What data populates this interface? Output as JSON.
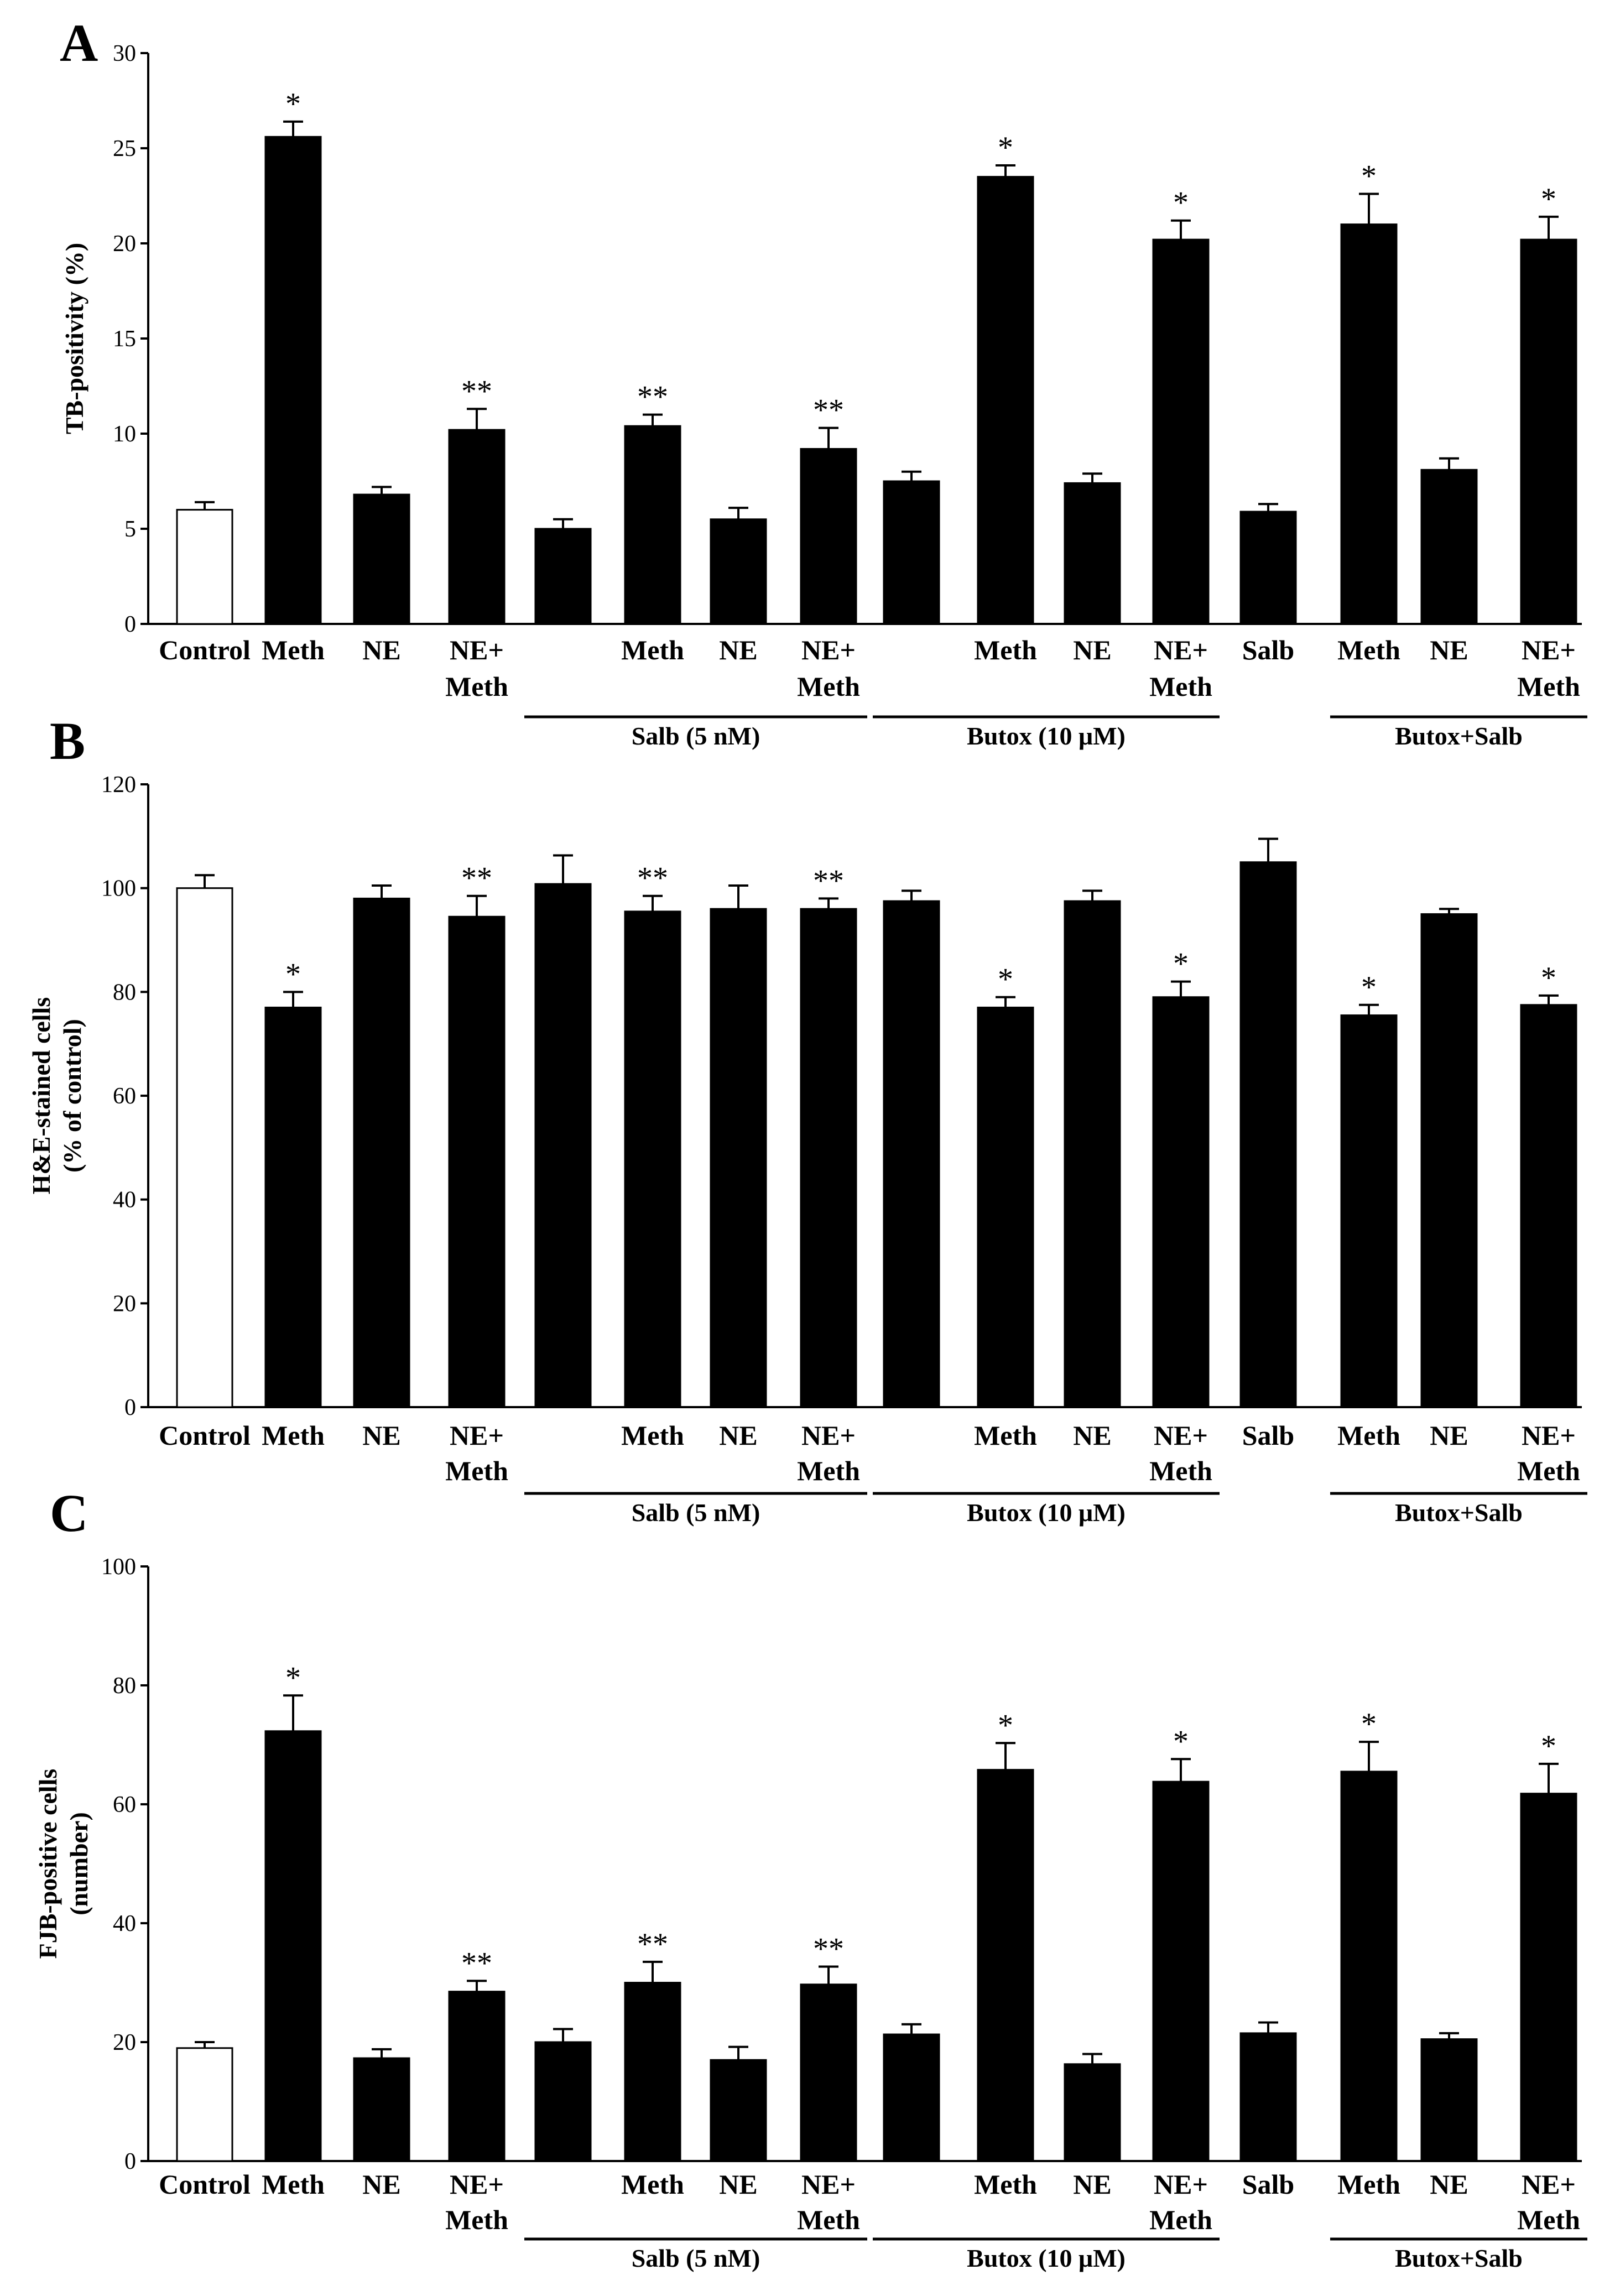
{
  "chart_data": [
    {
      "panel": "A",
      "type": "bar",
      "ylabel": "TB-positivity (%)",
      "ylim": [
        0,
        30
      ],
      "yticks": [
        0,
        5,
        10,
        15,
        20,
        25,
        30
      ],
      "bars": [
        {
          "label": "Control",
          "value": 6.0,
          "err": 0.4,
          "sig": "",
          "fill": "open"
        },
        {
          "label": "Meth",
          "value": 25.6,
          "err": 0.8,
          "sig": "*",
          "fill": "solid"
        },
        {
          "label": "NE",
          "value": 6.8,
          "err": 0.4,
          "sig": "",
          "fill": "solid"
        },
        {
          "label": "NE+\nMeth",
          "value": 10.2,
          "err": 1.1,
          "sig": "**",
          "fill": "solid"
        },
        {
          "label": "",
          "value": 5.0,
          "err": 0.5,
          "sig": "",
          "fill": "solid"
        },
        {
          "label": "Meth",
          "value": 10.4,
          "err": 0.6,
          "sig": "**",
          "fill": "solid"
        },
        {
          "label": "NE",
          "value": 5.5,
          "err": 0.6,
          "sig": "",
          "fill": "solid"
        },
        {
          "label": "NE+\nMeth",
          "value": 9.2,
          "err": 1.1,
          "sig": "**",
          "fill": "solid"
        },
        {
          "label": "",
          "value": 7.5,
          "err": 0.5,
          "sig": "",
          "fill": "solid"
        },
        {
          "label": "Meth",
          "value": 23.5,
          "err": 0.6,
          "sig": "*",
          "fill": "solid"
        },
        {
          "label": "NE",
          "value": 7.4,
          "err": 0.5,
          "sig": "",
          "fill": "solid"
        },
        {
          "label": "NE+\nMeth",
          "value": 20.2,
          "err": 1.0,
          "sig": "*",
          "fill": "solid"
        },
        {
          "label": "Salb",
          "value": 5.9,
          "err": 0.4,
          "sig": "",
          "fill": "solid"
        },
        {
          "label": "Meth",
          "value": 21.0,
          "err": 1.6,
          "sig": "*",
          "fill": "solid"
        },
        {
          "label": "NE",
          "value": 8.1,
          "err": 0.6,
          "sig": "",
          "fill": "solid"
        },
        {
          "label": "NE+\nMeth",
          "value": 20.2,
          "err": 1.2,
          "sig": "*",
          "fill": "solid"
        }
      ],
      "groups": [
        {
          "label": "Salb (5 nM)",
          "from": 4,
          "to": 7
        },
        {
          "label": "Butox (10 μM)",
          "from": 8,
          "to": 11
        },
        {
          "label": "Butox+Salb",
          "from": 13,
          "to": 15
        }
      ]
    },
    {
      "panel": "B",
      "type": "bar",
      "ylabel": "H&E-stained cells\n(% of control)",
      "ylim": [
        0,
        120
      ],
      "yticks": [
        0,
        20,
        40,
        60,
        80,
        100,
        120
      ],
      "bars": [
        {
          "label": "Control",
          "value": 100.0,
          "err": 2.5,
          "sig": "",
          "fill": "open"
        },
        {
          "label": "Meth",
          "value": 77.0,
          "err": 3.0,
          "sig": "*",
          "fill": "solid"
        },
        {
          "label": "NE",
          "value": 98.0,
          "err": 2.5,
          "sig": "",
          "fill": "solid"
        },
        {
          "label": "NE+\nMeth",
          "value": 94.5,
          "err": 4.0,
          "sig": "**",
          "fill": "solid"
        },
        {
          "label": "",
          "value": 100.8,
          "err": 5.5,
          "sig": "",
          "fill": "solid"
        },
        {
          "label": "Meth",
          "value": 95.5,
          "err": 3.0,
          "sig": "**",
          "fill": "solid"
        },
        {
          "label": "NE",
          "value": 96.0,
          "err": 4.5,
          "sig": "",
          "fill": "solid"
        },
        {
          "label": "NE+\nMeth",
          "value": 96.0,
          "err": 2.0,
          "sig": "**",
          "fill": "solid"
        },
        {
          "label": "",
          "value": 97.5,
          "err": 2.0,
          "sig": "",
          "fill": "solid"
        },
        {
          "label": "Meth",
          "value": 77.0,
          "err": 2.0,
          "sig": "*",
          "fill": "solid"
        },
        {
          "label": "NE",
          "value": 97.5,
          "err": 2.0,
          "sig": "",
          "fill": "solid"
        },
        {
          "label": "NE+\nMeth",
          "value": 79.0,
          "err": 3.0,
          "sig": "*",
          "fill": "solid"
        },
        {
          "label": "Salb",
          "value": 105.0,
          "err": 4.5,
          "sig": "",
          "fill": "solid"
        },
        {
          "label": "Meth",
          "value": 75.5,
          "err": 2.0,
          "sig": "*",
          "fill": "solid"
        },
        {
          "label": "NE",
          "value": 95.0,
          "err": 1.0,
          "sig": "",
          "fill": "solid"
        },
        {
          "label": "NE+\nMeth",
          "value": 77.5,
          "err": 1.8,
          "sig": "*",
          "fill": "solid"
        }
      ],
      "groups": [
        {
          "label": "Salb (5 nM)",
          "from": 4,
          "to": 7
        },
        {
          "label": "Butox (10 μM)",
          "from": 8,
          "to": 11
        },
        {
          "label": "Butox+Salb",
          "from": 13,
          "to": 15
        }
      ]
    },
    {
      "panel": "C",
      "type": "bar",
      "ylabel": "FJB-positive cells\n(number)",
      "ylim": [
        0,
        100
      ],
      "yticks": [
        0,
        20,
        40,
        60,
        80,
        100
      ],
      "bars": [
        {
          "label": "Control",
          "value": 19.0,
          "err": 1.0,
          "sig": "",
          "fill": "open"
        },
        {
          "label": "Meth",
          "value": 72.3,
          "err": 6.0,
          "sig": "*",
          "fill": "solid"
        },
        {
          "label": "NE",
          "value": 17.3,
          "err": 1.5,
          "sig": "",
          "fill": "solid"
        },
        {
          "label": "NE+\nMeth",
          "value": 28.5,
          "err": 1.8,
          "sig": "**",
          "fill": "solid"
        },
        {
          "label": "",
          "value": 20.0,
          "err": 2.2,
          "sig": "",
          "fill": "solid"
        },
        {
          "label": "Meth",
          "value": 30.0,
          "err": 3.5,
          "sig": "**",
          "fill": "solid"
        },
        {
          "label": "NE",
          "value": 17.0,
          "err": 2.2,
          "sig": "",
          "fill": "solid"
        },
        {
          "label": "NE+\nMeth",
          "value": 29.7,
          "err": 3.0,
          "sig": "**",
          "fill": "solid"
        },
        {
          "label": "",
          "value": 21.3,
          "err": 1.7,
          "sig": "",
          "fill": "solid"
        },
        {
          "label": "Meth",
          "value": 65.8,
          "err": 4.5,
          "sig": "*",
          "fill": "solid"
        },
        {
          "label": "NE",
          "value": 16.3,
          "err": 1.7,
          "sig": "",
          "fill": "solid"
        },
        {
          "label": "NE+\nMeth",
          "value": 63.8,
          "err": 3.8,
          "sig": "*",
          "fill": "solid"
        },
        {
          "label": "Salb",
          "value": 21.5,
          "err": 1.8,
          "sig": "",
          "fill": "solid"
        },
        {
          "label": "Meth",
          "value": 65.5,
          "err": 5.0,
          "sig": "*",
          "fill": "solid"
        },
        {
          "label": "NE",
          "value": 20.5,
          "err": 1.0,
          "sig": "",
          "fill": "solid"
        },
        {
          "label": "NE+\nMeth",
          "value": 61.8,
          "err": 5.0,
          "sig": "*",
          "fill": "solid"
        }
      ],
      "groups": [
        {
          "label": "Salb (5 nM)",
          "from": 4,
          "to": 7
        },
        {
          "label": "Butox (10 μM)",
          "from": 8,
          "to": 11
        },
        {
          "label": "Butox+Salb",
          "from": 13,
          "to": 15
        }
      ]
    }
  ]
}
